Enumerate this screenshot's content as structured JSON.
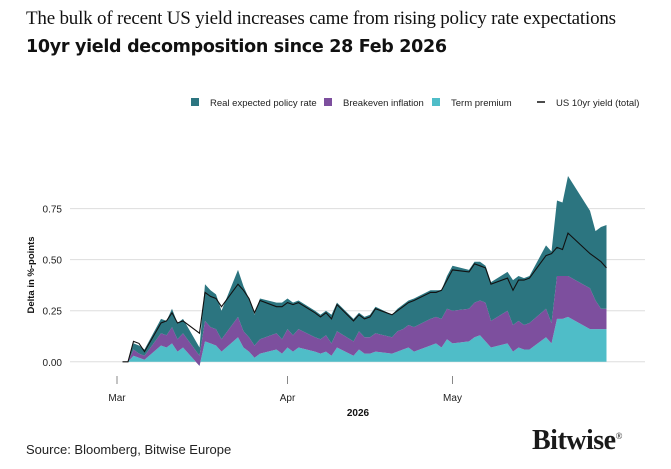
{
  "headline": "The bulk of recent US yield increases came from rising policy rate expectations",
  "source": "Source: Bloomberg, Bitwise Europe",
  "logo": "Bitwise",
  "chart_data": {
    "type": "area",
    "title": "10yr yield decomposition since 28 Feb 2026",
    "xlabel": "2026",
    "ylabel": "Delta in %-points",
    "ylim": [
      -0.05,
      0.9
    ],
    "yticks": [
      "0.00",
      "0.25",
      "0.50",
      "0.75"
    ],
    "ytick_values": [
      0,
      0.25,
      0.5,
      0.75
    ],
    "xtick_labels": [
      "Mar",
      "Apr",
      "May"
    ],
    "xtick_dates": [
      "2026-03-01",
      "2026-04-01",
      "2026-05-01"
    ],
    "stacked": true,
    "legend_position": "top",
    "grid": "horizontal",
    "x": [
      "2026-03-02",
      "2026-03-03",
      "2026-03-04",
      "2026-03-05",
      "2026-03-06",
      "2026-03-09",
      "2026-03-10",
      "2026-03-11",
      "2026-03-12",
      "2026-03-13",
      "2026-03-16",
      "2026-03-17",
      "2026-03-18",
      "2026-03-19",
      "2026-03-20",
      "2026-03-23",
      "2026-03-24",
      "2026-03-25",
      "2026-03-26",
      "2026-03-27",
      "2026-03-30",
      "2026-03-31",
      "2026-04-01",
      "2026-04-02",
      "2026-04-03",
      "2026-04-06",
      "2026-04-07",
      "2026-04-08",
      "2026-04-09",
      "2026-04-10",
      "2026-04-13",
      "2026-04-14",
      "2026-04-15",
      "2026-04-16",
      "2026-04-17",
      "2026-04-20",
      "2026-04-21",
      "2026-04-22",
      "2026-04-23",
      "2026-04-24",
      "2026-04-27",
      "2026-04-28",
      "2026-04-29",
      "2026-04-30",
      "2026-05-01",
      "2026-05-04",
      "2026-05-05",
      "2026-05-06",
      "2026-05-07",
      "2026-05-08",
      "2026-05-11",
      "2026-05-12",
      "2026-05-13",
      "2026-05-14",
      "2026-05-15",
      "2026-05-18",
      "2026-05-19",
      "2026-05-20",
      "2026-05-21",
      "2026-05-22",
      "2026-05-26",
      "2026-05-27",
      "2026-05-28",
      "2026-05-29"
    ],
    "series": [
      {
        "name": "Term premium",
        "color": "#4fbdc8",
        "values": [
          0.0,
          0.0,
          0.03,
          0.02,
          0.01,
          0.08,
          0.07,
          0.09,
          0.05,
          0.07,
          -0.02,
          0.1,
          0.09,
          0.08,
          0.05,
          0.12,
          0.07,
          0.05,
          0.02,
          0.04,
          0.06,
          0.04,
          0.07,
          0.05,
          0.07,
          0.05,
          0.04,
          0.05,
          0.03,
          0.07,
          0.03,
          0.06,
          0.04,
          0.04,
          0.05,
          0.04,
          0.05,
          0.06,
          0.07,
          0.05,
          0.08,
          0.09,
          0.07,
          0.11,
          0.09,
          0.1,
          0.12,
          0.13,
          0.1,
          0.07,
          0.09,
          0.05,
          0.07,
          0.06,
          0.06,
          0.12,
          0.09,
          0.21,
          0.21,
          0.22,
          0.16,
          0.16,
          0.16,
          0.16
        ]
      },
      {
        "name": "Breakeven inflation",
        "color": "#7d4f9e",
        "values": [
          0.0,
          0.0,
          0.03,
          0.02,
          0.02,
          0.06,
          0.06,
          0.08,
          0.06,
          0.07,
          0.05,
          0.1,
          0.08,
          0.08,
          0.06,
          0.1,
          0.08,
          0.07,
          0.06,
          0.07,
          0.08,
          0.07,
          0.09,
          0.08,
          0.09,
          0.07,
          0.07,
          0.08,
          0.06,
          0.08,
          0.07,
          0.09,
          0.08,
          0.08,
          0.09,
          0.08,
          0.1,
          0.1,
          0.11,
          0.12,
          0.13,
          0.13,
          0.14,
          0.15,
          0.16,
          0.16,
          0.17,
          0.17,
          0.19,
          0.13,
          0.16,
          0.13,
          0.13,
          0.12,
          0.13,
          0.14,
          0.1,
          0.21,
          0.21,
          0.2,
          0.2,
          0.14,
          0.1,
          0.1
        ]
      },
      {
        "name": "Real expected policy rate",
        "color": "#2c7580",
        "values": [
          0.0,
          0.0,
          0.03,
          0.04,
          0.03,
          0.07,
          0.07,
          0.09,
          0.08,
          0.07,
          0.04,
          0.18,
          0.18,
          0.17,
          0.14,
          0.23,
          0.22,
          0.19,
          0.15,
          0.2,
          0.15,
          0.18,
          0.15,
          0.16,
          0.14,
          0.13,
          0.12,
          0.12,
          0.14,
          0.14,
          0.11,
          0.09,
          0.1,
          0.11,
          0.13,
          0.11,
          0.11,
          0.12,
          0.12,
          0.14,
          0.14,
          0.13,
          0.14,
          0.16,
          0.22,
          0.19,
          0.2,
          0.19,
          0.18,
          0.19,
          0.19,
          0.22,
          0.22,
          0.23,
          0.23,
          0.31,
          0.35,
          0.37,
          0.36,
          0.49,
          0.38,
          0.34,
          0.4,
          0.41
        ]
      }
    ],
    "total": {
      "name": "US 10yr yield (total)",
      "color": "#111111",
      "values": [
        0.0,
        0.0,
        0.1,
        0.09,
        0.05,
        0.19,
        0.2,
        0.24,
        0.19,
        0.2,
        0.14,
        0.34,
        0.32,
        0.31,
        0.27,
        0.38,
        0.35,
        0.31,
        0.24,
        0.3,
        0.27,
        0.27,
        0.29,
        0.28,
        0.29,
        0.24,
        0.22,
        0.24,
        0.21,
        0.28,
        0.2,
        0.23,
        0.21,
        0.22,
        0.26,
        0.23,
        0.25,
        0.27,
        0.29,
        0.3,
        0.34,
        0.34,
        0.35,
        0.4,
        0.45,
        0.44,
        0.48,
        0.47,
        0.46,
        0.38,
        0.41,
        0.35,
        0.4,
        0.4,
        0.41,
        0.52,
        0.53,
        0.56,
        0.55,
        0.63,
        0.53,
        0.51,
        0.49,
        0.46
      ]
    }
  }
}
